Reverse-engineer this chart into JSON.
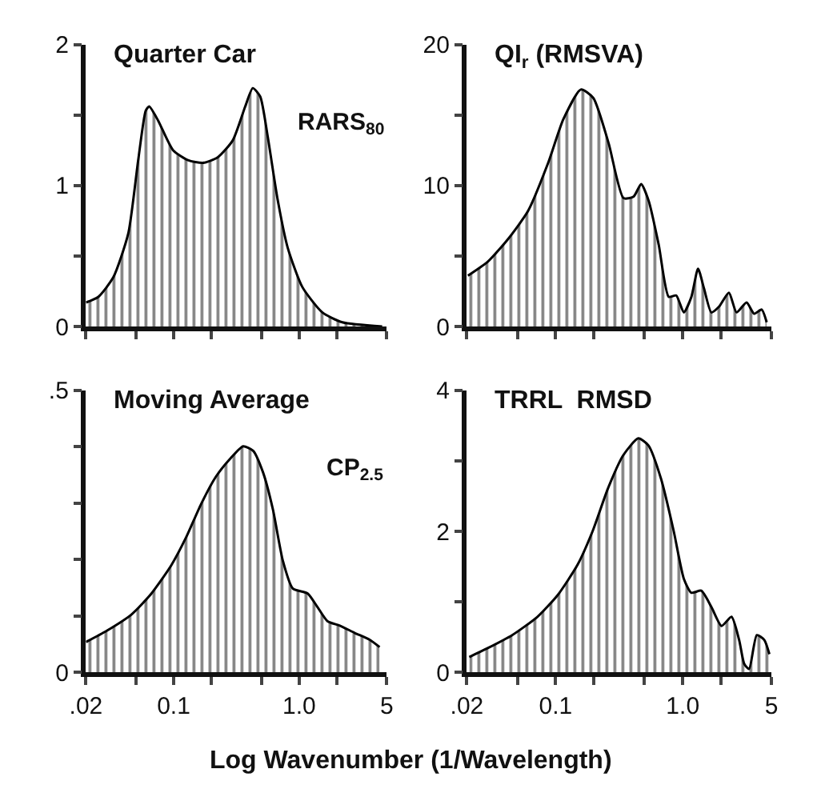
{
  "chart_data": [
    {
      "type": "area",
      "title": "Quarter Car",
      "annotations": [
        "RARS$_{80}$"
      ],
      "tick_labels": "y",
      "log": "x",
      "xlim": [
        0.02,
        5
      ],
      "xticks": [
        {
          "value": 0.02,
          "label": null
        },
        {
          "value": 0.05,
          "label": null
        },
        {
          "value": 0.1,
          "label": null
        },
        {
          "value": 0.2,
          "label": null
        },
        {
          "value": 0.5,
          "label": null
        },
        {
          "value": 1,
          "label": null
        },
        {
          "value": 2,
          "label": null
        },
        {
          "value": 5,
          "label": null
        }
      ],
      "ylim": [
        0,
        2
      ],
      "yticks": [
        0,
        {
          "value": 0.5,
          "label": null
        },
        1,
        {
          "value": 1.5,
          "label": null
        },
        2
      ],
      "series": [
        {
          "color": "#000000",
          "x": [
            0.02,
            0.0251,
            0.0331,
            0.0435,
            0.0522,
            0.0599,
            0.0638,
            0.0752,
            0.0989,
            0.13,
            0.171,
            0.225,
            0.296,
            0.372,
            0.427,
            0.49,
            0.561,
            0.674,
            0.81,
            1.06,
            1.53,
            2.21,
            4.59
          ],
          "values": [
            0.17,
            0.21,
            0.35,
            0.66,
            1.18,
            1.53,
            1.56,
            1.46,
            1.25,
            1.18,
            1.16,
            1.2,
            1.32,
            1.56,
            1.69,
            1.63,
            1.35,
            0.9,
            0.56,
            0.28,
            0.1,
            0.03,
            0.0
          ]
        }
      ]
    },
    {
      "type": "area",
      "title": "QI$_{r}$ (RMSVA)",
      "tick_labels": "y",
      "log": "x",
      "xlim": [
        0.02,
        5
      ],
      "xticks": [
        {
          "value": 0.02,
          "label": null
        },
        {
          "value": 0.05,
          "label": null
        },
        {
          "value": 0.1,
          "label": null
        },
        {
          "value": 0.2,
          "label": null
        },
        {
          "value": 0.5,
          "label": null
        },
        {
          "value": 1,
          "label": null
        },
        {
          "value": 2,
          "label": null
        },
        {
          "value": 5,
          "label": null
        }
      ],
      "ylim": [
        0,
        20
      ],
      "yticks": [
        0,
        {
          "value": 5,
          "label": null
        },
        10,
        {
          "value": 15,
          "label": null
        },
        20
      ],
      "series": [
        {
          "color": "#000000",
          "x": [
            0.0204,
            0.0293,
            0.0422,
            0.0607,
            0.0873,
            0.115,
            0.158,
            0.198,
            0.261,
            0.342,
            0.41,
            0.471,
            0.54,
            0.647,
            0.776,
            0.889,
            1.02,
            1.17,
            1.32,
            1.47,
            1.68,
            1.93,
            2.31,
            2.65,
            3.18,
            3.65,
            4.18,
            4.58
          ],
          "values": [
            3.6,
            4.6,
            6.2,
            8.2,
            11.6,
            14.7,
            16.8,
            16.2,
            13.0,
            9.1,
            9.2,
            10.1,
            8.9,
            5.8,
            2.1,
            2.2,
            1.0,
            2.1,
            4.1,
            2.7,
            1.0,
            1.4,
            2.4,
            1.0,
            1.7,
            0.9,
            1.2,
            0.3
          ]
        }
      ]
    },
    {
      "type": "area",
      "title": "Moving Average",
      "annotations": [
        "CP$_{2.5}$"
      ],
      "xlabel": "Log Wavenumber (1/Wavelength)",
      "log": "x",
      "xlim": [
        0.02,
        5
      ],
      "xticks": [
        {
          "value": 0.02,
          "label": ".02"
        },
        {
          "value": 0.05,
          "label": null
        },
        0.1,
        {
          "value": 0.2,
          "label": null
        },
        {
          "value": 0.5,
          "label": null
        },
        {
          "value": 1,
          "label": "1.0"
        },
        {
          "value": 2,
          "label": null
        },
        5
      ],
      "ylim": [
        0,
        0.5
      ],
      "yticks": [
        0,
        {
          "value": 0.1,
          "label": null
        },
        {
          "value": 0.2,
          "label": null
        },
        {
          "value": 0.3,
          "label": null
        },
        {
          "value": 0.4,
          "label": null
        },
        {
          "value": 0.5,
          "label": ".5"
        }
      ],
      "series": [
        {
          "color": "#000000",
          "x": [
            0.02,
            0.0293,
            0.0462,
            0.0665,
            0.0957,
            0.126,
            0.165,
            0.217,
            0.285,
            0.358,
            0.43,
            0.515,
            0.618,
            0.742,
            0.889,
            1.17,
            1.4,
            1.68,
            2.11,
            2.78,
            3.65,
            4.38
          ],
          "values": [
            0.054,
            0.074,
            0.103,
            0.14,
            0.19,
            0.24,
            0.298,
            0.347,
            0.38,
            0.401,
            0.393,
            0.355,
            0.289,
            0.198,
            0.149,
            0.14,
            0.116,
            0.091,
            0.083,
            0.07,
            0.058,
            0.045
          ]
        }
      ]
    },
    {
      "type": "area",
      "title": "TRRL  RMSD",
      "log": "x",
      "xlim": [
        0.02,
        5
      ],
      "xticks": [
        {
          "value": 0.02,
          "label": ".02"
        },
        {
          "value": 0.05,
          "label": null
        },
        0.1,
        {
          "value": 0.2,
          "label": null
        },
        {
          "value": 0.5,
          "label": null
        },
        {
          "value": 1,
          "label": "1.0"
        },
        {
          "value": 2,
          "label": null
        },
        5
      ],
      "ylim": [
        0,
        4
      ],
      "yticks": [
        0,
        {
          "value": 1,
          "label": null
        },
        2,
        {
          "value": 3,
          "label": null
        },
        4
      ],
      "series": [
        {
          "color": "#000000",
          "x": [
            0.0209,
            0.0288,
            0.0455,
            0.0719,
            0.104,
            0.149,
            0.196,
            0.258,
            0.34,
            0.447,
            0.537,
            0.674,
            0.848,
            1.02,
            1.17,
            1.4,
            1.68,
            2.02,
            2.42,
            2.78,
            3.05,
            3.33,
            3.83,
            4.39,
            4.81
          ],
          "values": [
            0.22,
            0.34,
            0.53,
            0.79,
            1.1,
            1.53,
            2.01,
            2.61,
            3.08,
            3.32,
            3.22,
            2.75,
            2.01,
            1.33,
            1.13,
            1.16,
            0.93,
            0.66,
            0.79,
            0.46,
            0.12,
            0.05,
            0.53,
            0.46,
            0.26
          ]
        }
      ]
    }
  ]
}
